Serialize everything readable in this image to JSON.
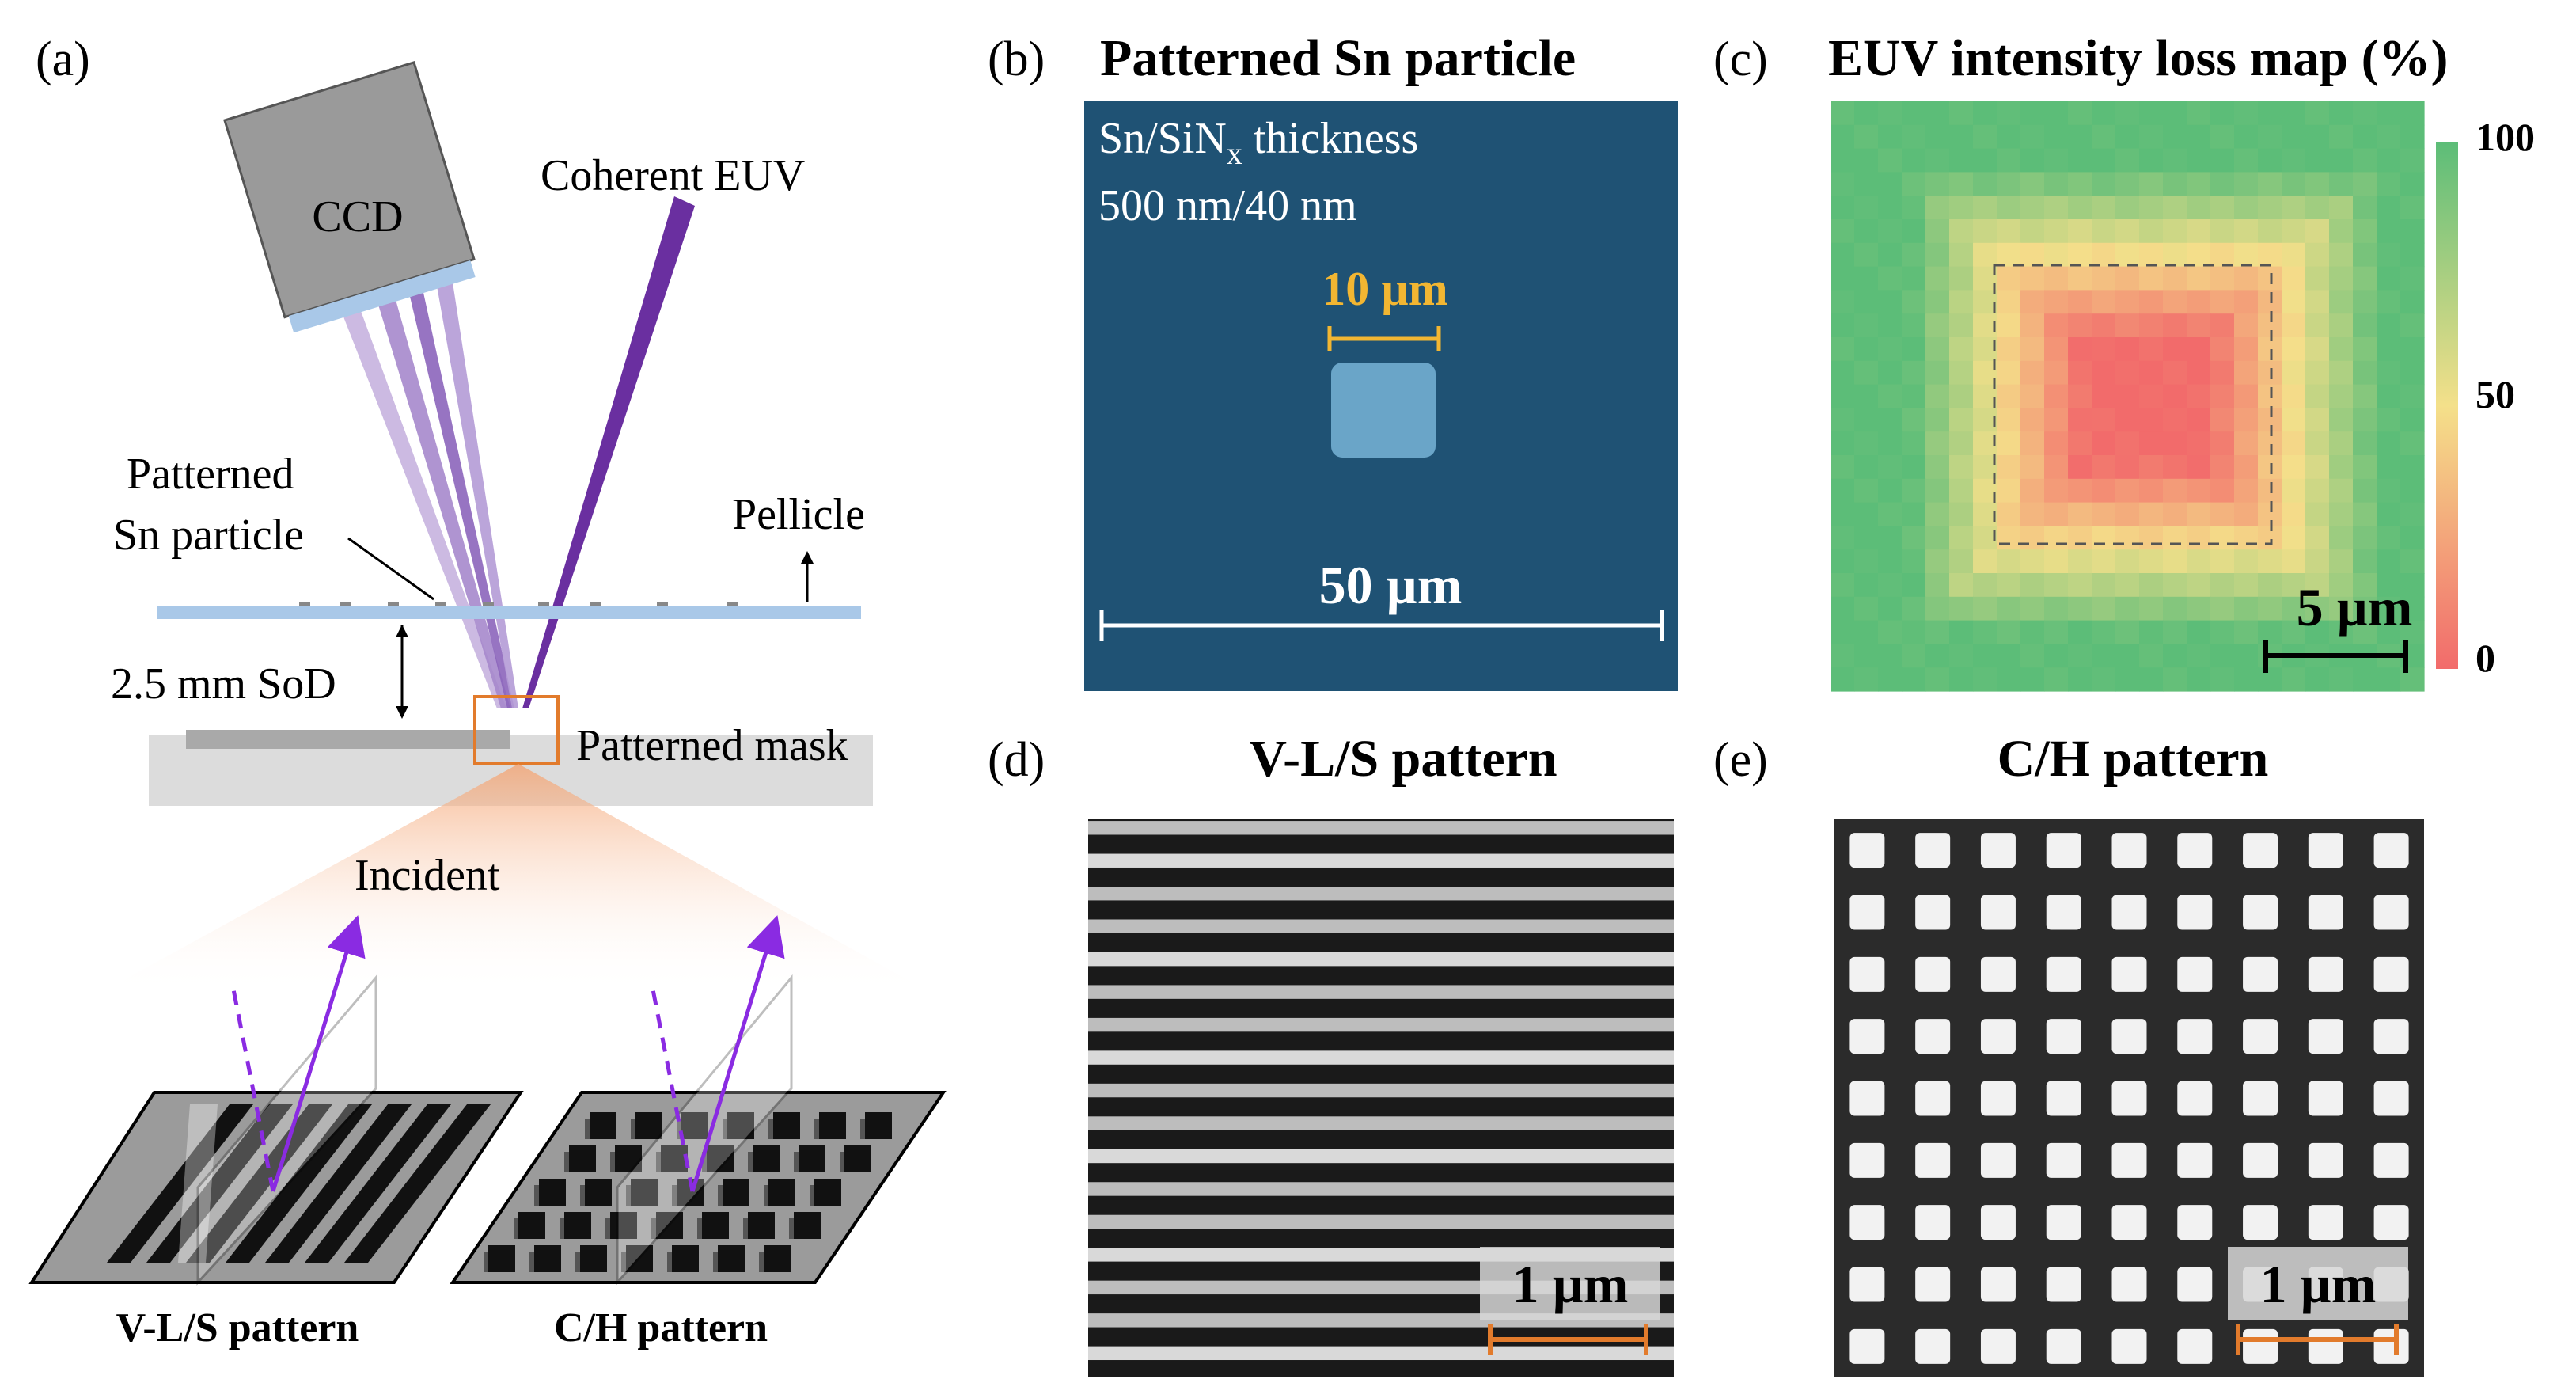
{
  "panel_a": {
    "label": "(a)",
    "ccd": "CCD",
    "beam": "Coherent EUV",
    "particle_l1": "Patterned",
    "particle_l2": "Sn particle",
    "pellicle": "Pellicle",
    "sod": "2.5 mm SoD",
    "mask": "Patterned mask",
    "incident": "Incident",
    "vls": "V-L/S pattern",
    "ch": "C/H pattern"
  },
  "panel_b": {
    "label": "(b)",
    "title": "Patterned Sn particle",
    "thick_l1_a": "Sn/SiN",
    "thick_l1_sub": "x",
    "thick_l1_b": " thickness",
    "thick_l2": "500 nm/40 nm",
    "scale_small": "10 µm",
    "scale_big": "50 µm"
  },
  "panel_c": {
    "label": "(c)",
    "title": "EUV intensity loss map (%)",
    "scale": "5 µm",
    "cb_max": "100",
    "cb_mid": "50",
    "cb_min": "0"
  },
  "panel_d": {
    "label": "(d)",
    "title": "V-L/S pattern",
    "scale": "1 µm"
  },
  "panel_e": {
    "label": "(e)",
    "title": "C/H pattern",
    "scale": "1 µm"
  },
  "colors": {
    "beam": "#6a2fa0",
    "beam_light": "#a98ac8",
    "pellicle": "#a9c8e8",
    "orange": "#e27b2c",
    "sem_blue": "#1f5274",
    "gold": "#f2b632"
  }
}
